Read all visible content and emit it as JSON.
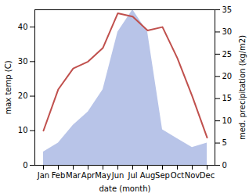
{
  "chart_data": {
    "type": "line",
    "xlabel": "date (month)",
    "ylabel": "max temp (C)",
    "y2label": "med. precipitation (kg/m2)",
    "categories": [
      "Jan",
      "Feb",
      "Mar",
      "Apr",
      "May",
      "Jun",
      "Jul",
      "Aug",
      "Sep",
      "Oct",
      "Nov",
      "Dec"
    ],
    "series": [
      {
        "type": "area",
        "axis": "y2",
        "color": "#b8c4e8",
        "values": [
          3,
          5,
          9,
          12,
          17,
          30,
          35,
          30,
          8,
          6,
          4,
          5
        ]
      },
      {
        "type": "line",
        "color": "#c0504d",
        "values": [
          10,
          22,
          28,
          30,
          34,
          44,
          43,
          39,
          40,
          31,
          20,
          8
        ]
      }
    ],
    "ylim": [
      0,
      45
    ],
    "yticks": [
      0,
      10,
      20,
      30,
      40
    ],
    "y2lim": [
      0,
      35
    ],
    "y2ticks": [
      0,
      5,
      10,
      15,
      20,
      25,
      30,
      35
    ],
    "grid": false
  }
}
